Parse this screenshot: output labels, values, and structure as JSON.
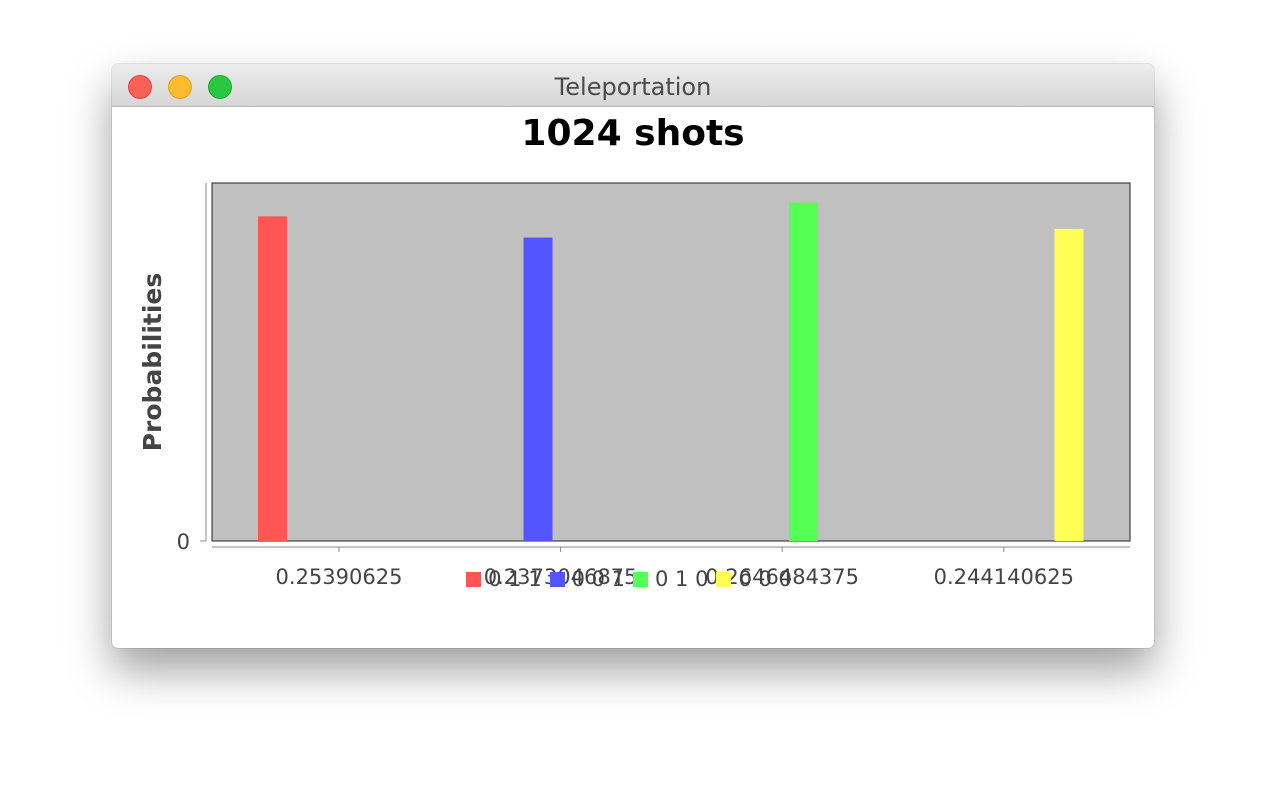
{
  "window": {
    "title": "Teleportation",
    "controls": {
      "close": "close",
      "minimize": "minimize",
      "maximize": "zoom"
    }
  },
  "chart_data": {
    "type": "bar",
    "title": "1024 shots",
    "ylabel": "Probabilities",
    "xlabel": "",
    "y_tick_labels": [
      "0"
    ],
    "ylim": [
      0,
      0.28
    ],
    "categories": [
      "0.25390625",
      "0.2373046875",
      "0.2646484375",
      "0.244140625"
    ],
    "series": [
      {
        "name": "0 1 1",
        "color": "#ff5555",
        "values": [
          0.25390625,
          null,
          null,
          null
        ]
      },
      {
        "name": "0 0 1",
        "color": "#5555ff",
        "values": [
          null,
          0.2373046875,
          null,
          null
        ]
      },
      {
        "name": "0 1 0",
        "color": "#55ff55",
        "values": [
          null,
          null,
          0.2646484375,
          null
        ]
      },
      {
        "name": "0 0 0",
        "color": "#ffff55",
        "values": [
          null,
          null,
          null,
          0.244140625
        ]
      }
    ],
    "plot_background": "#c0c0c0",
    "grid": false,
    "legend_position": "bottom"
  }
}
